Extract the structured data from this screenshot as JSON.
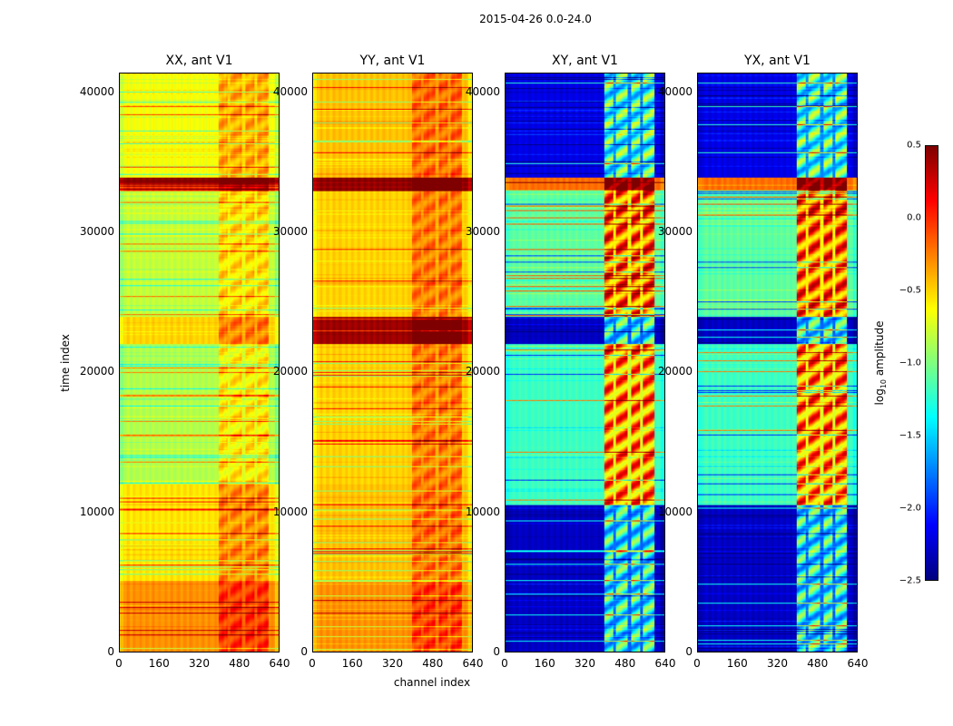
{
  "chart_data": {
    "type": "heatmap",
    "title": "2015-04-26 0.0-24.0",
    "xlabel": "channel index",
    "ylabel": "time index",
    "xlim": [
      0,
      640
    ],
    "ylim": [
      0,
      41400
    ],
    "xticks": [
      "0",
      "160",
      "320",
      "480",
      "640"
    ],
    "yticks": [
      "0",
      "10000",
      "20000",
      "30000",
      "40000"
    ],
    "colorbar": {
      "label_prefix": "log",
      "label_sub": "10",
      "label_suffix": " amplitude",
      "range": [
        -2.5,
        0.5
      ],
      "ticks": [
        "0.5",
        "0.0",
        "−0.5",
        "−1.0",
        "−1.5",
        "−2.0",
        "−2.5"
      ],
      "colormap": "jet"
    },
    "panels": [
      {
        "title": "XX, ant V1",
        "kind": "parallel",
        "regions": [
          [
            0,
            5000,
            -0.3
          ],
          [
            5000,
            12000,
            -0.55
          ],
          [
            12000,
            22000,
            -0.85
          ],
          [
            22000,
            24000,
            -0.5
          ],
          [
            24000,
            33000,
            -0.8
          ],
          [
            33000,
            34000,
            0.45
          ],
          [
            34000,
            41400,
            -0.65
          ]
        ],
        "hot_channels": [
          400,
          600
        ],
        "hot_boost": 0.35
      },
      {
        "title": "YY, ant V1",
        "kind": "parallel",
        "regions": [
          [
            0,
            5000,
            -0.3
          ],
          [
            5000,
            12000,
            -0.45
          ],
          [
            12000,
            22000,
            -0.5
          ],
          [
            22000,
            24000,
            0.4
          ],
          [
            24000,
            33000,
            -0.5
          ],
          [
            33000,
            34000,
            0.45
          ],
          [
            34000,
            41400,
            -0.45
          ]
        ],
        "hot_channels": [
          400,
          600
        ],
        "hot_boost": 0.35
      },
      {
        "title": "XY, ant V1",
        "kind": "cross",
        "regions": [
          [
            0,
            10500,
            -2.3
          ],
          [
            10500,
            22000,
            -1.2
          ],
          [
            22000,
            24000,
            -2.3
          ],
          [
            24000,
            33000,
            -1.1
          ],
          [
            33000,
            34000,
            -0.2
          ],
          [
            34000,
            41400,
            -2.2
          ]
        ],
        "hot_channels": [
          400,
          600
        ],
        "hot_boost": 1.2
      },
      {
        "title": "YX, ant V1",
        "kind": "cross",
        "regions": [
          [
            0,
            10500,
            -2.3
          ],
          [
            10500,
            22000,
            -1.2
          ],
          [
            22000,
            24000,
            -2.3
          ],
          [
            24000,
            33000,
            -1.1
          ],
          [
            33000,
            34000,
            -0.2
          ],
          [
            34000,
            41400,
            -2.2
          ]
        ],
        "hot_channels": [
          400,
          600
        ],
        "hot_boost": 1.2
      }
    ]
  }
}
